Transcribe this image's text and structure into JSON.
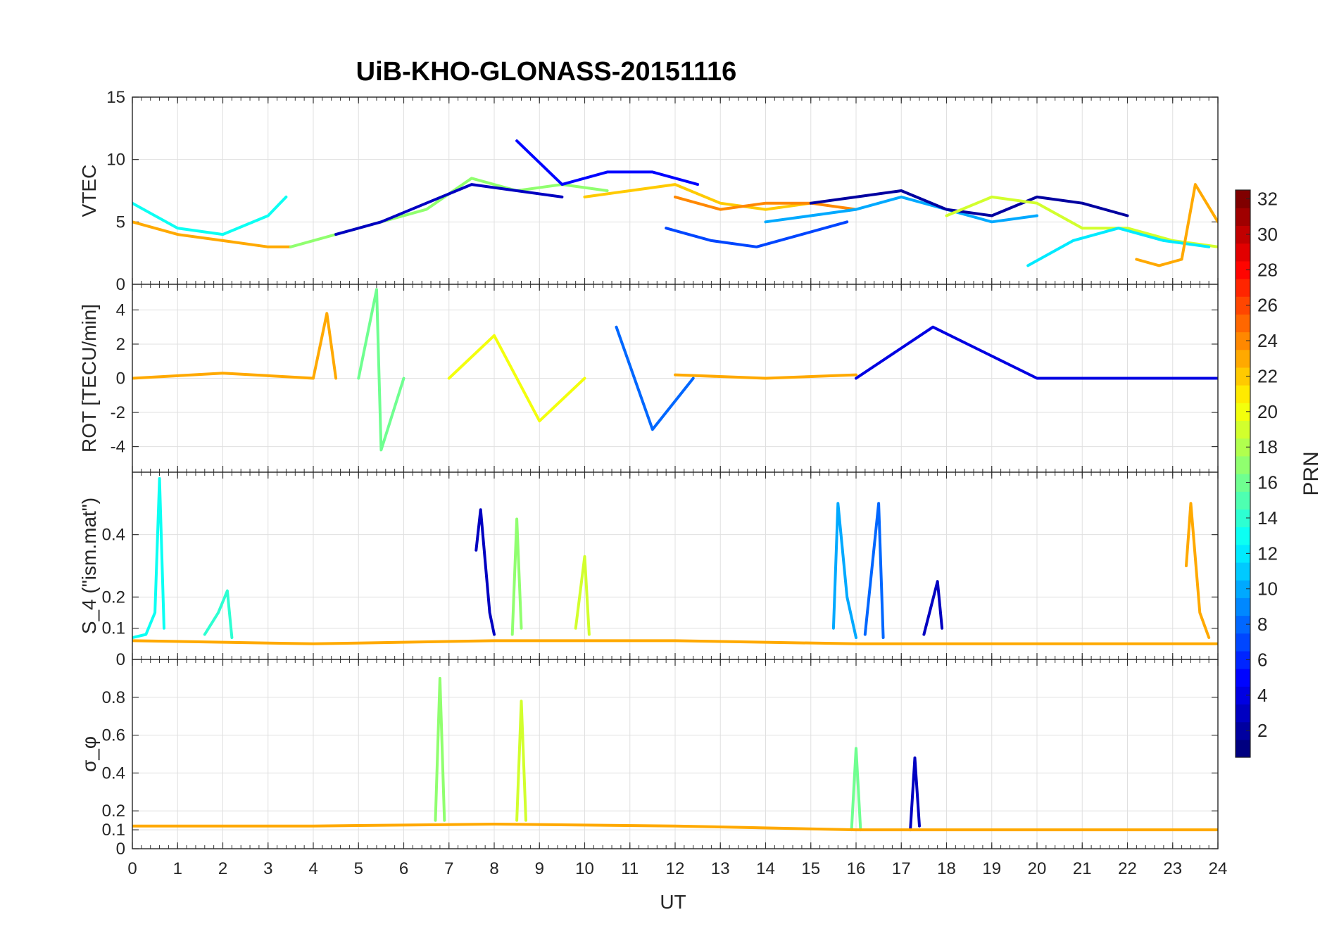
{
  "figure": {
    "title": "UiB-KHO-GLONASS-20151116",
    "xlabel": "UT",
    "colorbar": {
      "label": "PRN",
      "ticks": [
        "2",
        "4",
        "6",
        "8",
        "10",
        "12",
        "14",
        "16",
        "18",
        "20",
        "22",
        "24",
        "26",
        "28",
        "30",
        "32"
      ],
      "range": [
        1,
        32
      ],
      "colormap": "jet"
    }
  },
  "chart_data": [
    {
      "type": "line",
      "ylabel": "VTEC",
      "xlim": [
        0,
        24
      ],
      "ylim": [
        0,
        15
      ],
      "yticks": [
        "0",
        "5",
        "10",
        "15"
      ],
      "xticks": [
        "0",
        "1",
        "2",
        "3",
        "4",
        "5",
        "6",
        "7",
        "8",
        "9",
        "10",
        "11",
        "12",
        "13",
        "14",
        "15",
        "16",
        "17",
        "18",
        "19",
        "20",
        "21",
        "22",
        "23",
        "24"
      ],
      "grid": true,
      "series_note": "one trace per GLONASS satellite, coloured by PRN",
      "series": [
        {
          "prn": 13,
          "x": [
            0,
            0.5,
            1,
            2,
            3,
            3.4
          ],
          "y": [
            6.5,
            5.5,
            4.5,
            4.0,
            5.5,
            7.0
          ]
        },
        {
          "prn": 23,
          "x": [
            0,
            1,
            2,
            3,
            3.5
          ],
          "y": [
            5.0,
            4.0,
            3.5,
            3.0,
            3.0
          ]
        },
        {
          "prn": 17,
          "x": [
            3.5,
            4.5,
            5.5,
            6.5,
            7.5,
            8.5,
            9.5,
            10.5
          ],
          "y": [
            3.0,
            4.0,
            5.0,
            6.0,
            8.5,
            7.5,
            8.0,
            7.5
          ]
        },
        {
          "prn": 3,
          "x": [
            4.5,
            5.5,
            6.5,
            7.5,
            8.5,
            9.5
          ],
          "y": [
            4.0,
            5.0,
            6.5,
            8.0,
            7.5,
            7.0
          ]
        },
        {
          "prn": 5,
          "x": [
            8.5,
            9.5,
            10.5,
            11.5,
            12.5
          ],
          "y": [
            11.5,
            8.0,
            9.0,
            9.0,
            8.0
          ]
        },
        {
          "prn": 22,
          "x": [
            10,
            11,
            12,
            13,
            14,
            15
          ],
          "y": [
            7.0,
            7.5,
            8.0,
            6.5,
            6.0,
            6.5
          ]
        },
        {
          "prn": 24,
          "x": [
            12,
            13,
            14,
            15,
            16
          ],
          "y": [
            7.0,
            6.0,
            6.5,
            6.5,
            6.0
          ]
        },
        {
          "prn": 7,
          "x": [
            11.8,
            12.8,
            13.8,
            14.8,
            15.8
          ],
          "y": [
            4.5,
            3.5,
            3.0,
            4.0,
            5.0
          ]
        },
        {
          "prn": 10,
          "x": [
            14,
            15,
            16,
            17,
            18,
            19,
            20
          ],
          "y": [
            5.0,
            5.5,
            6.0,
            7.0,
            6.0,
            5.0,
            5.5
          ]
        },
        {
          "prn": 2,
          "x": [
            15,
            16,
            17,
            18,
            19,
            20,
            21,
            22
          ],
          "y": [
            6.5,
            7.0,
            7.5,
            6.0,
            5.5,
            7.0,
            6.5,
            5.5
          ]
        },
        {
          "prn": 19,
          "x": [
            18,
            19,
            20,
            21,
            22,
            23,
            24
          ],
          "y": [
            5.5,
            7.0,
            6.5,
            4.5,
            4.5,
            3.5,
            3.0
          ]
        },
        {
          "prn": 12,
          "x": [
            19.8,
            20.8,
            21.8,
            22.8,
            23.8
          ],
          "y": [
            1.5,
            3.5,
            4.5,
            3.5,
            3.0
          ]
        },
        {
          "prn": 23,
          "x": [
            22.2,
            22.7,
            23.2,
            23.5,
            24
          ],
          "y": [
            2.0,
            1.5,
            2.0,
            8.0,
            5.0
          ]
        }
      ]
    },
    {
      "type": "line",
      "ylabel": "ROT [TECU/min]",
      "xlim": [
        0,
        24
      ],
      "ylim": [
        -5.5,
        5.5
      ],
      "yticks": [
        "-4",
        "-2",
        "0",
        "2",
        "4"
      ],
      "xticks": [
        "0",
        "1",
        "2",
        "3",
        "4",
        "5",
        "6",
        "7",
        "8",
        "9",
        "10",
        "11",
        "12",
        "13",
        "14",
        "15",
        "16",
        "17",
        "18",
        "19",
        "20",
        "21",
        "22",
        "23",
        "24"
      ],
      "grid": true,
      "series_note": "rate of TEC, fluctuating about zero",
      "series": [
        {
          "prn": 23,
          "x": [
            0,
            2,
            4,
            4.3,
            4.5
          ],
          "y": [
            0.0,
            0.3,
            0.0,
            3.8,
            0.0
          ]
        },
        {
          "prn": 16,
          "x": [
            5,
            5.4,
            5.5,
            6
          ],
          "y": [
            0.0,
            5.2,
            -4.2,
            0.0
          ]
        },
        {
          "prn": 20,
          "x": [
            7,
            8,
            9,
            10
          ],
          "y": [
            0.0,
            2.5,
            -2.5,
            0.0
          ]
        },
        {
          "prn": 8,
          "x": [
            10.7,
            11.5,
            12.4
          ],
          "y": [
            3.0,
            -3.0,
            0.0
          ]
        },
        {
          "prn": 23,
          "x": [
            12,
            14,
            16
          ],
          "y": [
            0.2,
            0.0,
            0.2
          ]
        },
        {
          "prn": 4,
          "x": [
            16,
            17.7,
            20,
            24
          ],
          "y": [
            0.0,
            3.0,
            0.0,
            0.0
          ]
        }
      ]
    },
    {
      "type": "line",
      "ylabel": "S_4 (\"ism.mat\")",
      "xlim": [
        0,
        24
      ],
      "ylim": [
        0,
        0.6
      ],
      "yticks": [
        "0",
        "0.1",
        "0.2",
        "0.4"
      ],
      "xticks": [
        "0",
        "1",
        "2",
        "3",
        "4",
        "5",
        "6",
        "7",
        "8",
        "9",
        "10",
        "11",
        "12",
        "13",
        "14",
        "15",
        "16",
        "17",
        "18",
        "19",
        "20",
        "21",
        "22",
        "23",
        "24"
      ],
      "grid": true,
      "series_note": "amplitude scintillation index",
      "series": [
        {
          "prn": 13,
          "x": [
            0,
            0.3,
            0.5,
            0.6,
            0.7
          ],
          "y": [
            0.07,
            0.08,
            0.15,
            0.58,
            0.1
          ]
        },
        {
          "prn": 14,
          "x": [
            1.6,
            1.9,
            2.1,
            2.2
          ],
          "y": [
            0.08,
            0.15,
            0.22,
            0.07
          ]
        },
        {
          "prn": 3,
          "x": [
            7.6,
            7.7,
            7.9,
            8.0
          ],
          "y": [
            0.35,
            0.48,
            0.15,
            0.08
          ]
        },
        {
          "prn": 17,
          "x": [
            8.4,
            8.5,
            8.6
          ],
          "y": [
            0.08,
            0.45,
            0.1
          ]
        },
        {
          "prn": 19,
          "x": [
            9.8,
            10.0,
            10.1
          ],
          "y": [
            0.1,
            0.33,
            0.08
          ]
        },
        {
          "prn": 10,
          "x": [
            15.5,
            15.6,
            15.8,
            16.0
          ],
          "y": [
            0.1,
            0.5,
            0.2,
            0.07
          ]
        },
        {
          "prn": 8,
          "x": [
            16.2,
            16.5,
            16.6
          ],
          "y": [
            0.08,
            0.5,
            0.07
          ]
        },
        {
          "prn": 3,
          "x": [
            17.5,
            17.8,
            17.9
          ],
          "y": [
            0.08,
            0.25,
            0.1
          ]
        },
        {
          "prn": 23,
          "x": [
            23.3,
            23.4,
            23.6,
            23.8
          ],
          "y": [
            0.3,
            0.5,
            0.15,
            0.07
          ]
        },
        {
          "prn": 23,
          "x": [
            0,
            4,
            8,
            12,
            16,
            20,
            24
          ],
          "y": [
            0.06,
            0.05,
            0.06,
            0.06,
            0.05,
            0.05,
            0.05
          ]
        }
      ]
    },
    {
      "type": "line",
      "ylabel": "σ_φ",
      "xlim": [
        0,
        24
      ],
      "ylim": [
        0,
        1
      ],
      "yticks": [
        "0",
        "0.1",
        "0.2",
        "0.4",
        "0.6",
        "0.8"
      ],
      "xticks": [
        "0",
        "1",
        "2",
        "3",
        "4",
        "5",
        "6",
        "7",
        "8",
        "9",
        "10",
        "11",
        "12",
        "13",
        "14",
        "15",
        "16",
        "17",
        "18",
        "19",
        "20",
        "21",
        "22",
        "23",
        "24"
      ],
      "grid": true,
      "series_note": "phase scintillation index",
      "series": [
        {
          "prn": 17,
          "x": [
            6.7,
            6.8,
            6.9
          ],
          "y": [
            0.15,
            0.9,
            0.15
          ]
        },
        {
          "prn": 19,
          "x": [
            8.5,
            8.6,
            8.7
          ],
          "y": [
            0.15,
            0.78,
            0.15
          ]
        },
        {
          "prn": 16,
          "x": [
            15.9,
            16.0,
            16.1
          ],
          "y": [
            0.1,
            0.53,
            0.1
          ]
        },
        {
          "prn": 3,
          "x": [
            17.2,
            17.3,
            17.4
          ],
          "y": [
            0.1,
            0.48,
            0.12
          ]
        },
        {
          "prn": 23,
          "x": [
            0,
            4,
            8,
            12,
            16,
            20,
            24
          ],
          "y": [
            0.12,
            0.12,
            0.13,
            0.12,
            0.1,
            0.1,
            0.1
          ]
        }
      ]
    }
  ]
}
